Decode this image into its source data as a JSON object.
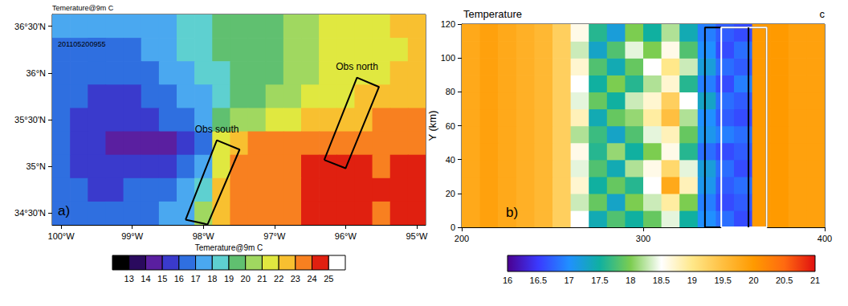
{
  "chart_data": [
    {
      "type": "heatmap",
      "title": "Temerature@9m C",
      "label": "a)",
      "annotation": "201105200955",
      "grid": false,
      "x": [
        -100,
        -99.75,
        -99.5,
        -99.25,
        -99,
        -98.75,
        -98.5,
        -98.25,
        -98,
        -97.75,
        -97.5,
        -97.25,
        -97,
        -96.75,
        -96.5,
        -96.25,
        -96,
        -95.75,
        -95.5,
        -95.25,
        -95
      ],
      "y": [
        36.5,
        36.25,
        36,
        35.75,
        35.5,
        35.25,
        35,
        34.75,
        34.5
      ],
      "cells": [
        [
          17.5,
          17.5,
          17.3,
          17.2,
          17.2,
          17.4,
          17.8,
          18.3,
          18.8,
          19.3,
          19.6,
          19.8,
          19.7,
          20.2,
          20.7,
          21.2,
          21.5,
          21.6,
          21.8,
          22.0,
          22.2
        ],
        [
          16.8,
          16.6,
          16.5,
          16.6,
          16.8,
          17.2,
          17.6,
          18.1,
          18.6,
          19.0,
          19.4,
          19.7,
          19.6,
          20.1,
          20.6,
          21.0,
          21.3,
          21.5,
          21.7,
          21.9,
          22.1
        ],
        [
          16.9,
          16.5,
          16.1,
          16.0,
          16.3,
          16.7,
          17.1,
          17.6,
          18.2,
          18.8,
          19.3,
          19.8,
          19.9,
          20.3,
          20.8,
          21.1,
          21.4,
          21.6,
          21.8,
          22.0,
          22.2
        ],
        [
          16.7,
          16.1,
          15.6,
          15.5,
          15.8,
          16.2,
          16.6,
          17.2,
          17.9,
          18.7,
          19.2,
          19.8,
          20.2,
          20.6,
          21.1,
          21.5,
          21.8,
          22.0,
          22.2,
          22.3,
          22.4
        ],
        [
          16.5,
          15.8,
          15.4,
          15.3,
          15.4,
          15.7,
          16.0,
          16.6,
          17.6,
          19.3,
          20.2,
          20.8,
          21.2,
          21.7,
          22.2,
          22.6,
          22.8,
          22.9,
          23.0,
          23.1,
          23.2
        ],
        [
          16.2,
          15.7,
          15.2,
          14.9,
          14.7,
          14.6,
          14.8,
          15.4,
          16.8,
          21.5,
          22.8,
          23.2,
          23.4,
          23.3,
          23.0,
          23.2,
          23.6,
          23.8,
          23.6,
          23.4,
          23.2
        ],
        [
          16.0,
          15.6,
          15.3,
          15.2,
          15.4,
          15.5,
          15.7,
          16.2,
          17.3,
          21.0,
          23.0,
          23.4,
          23.6,
          23.8,
          24.1,
          24.4,
          24.3,
          24.0,
          23.8,
          24.0,
          24.2
        ],
        [
          16.3,
          16.0,
          15.8,
          15.9,
          16.0,
          16.2,
          16.5,
          17.0,
          18.8,
          22.2,
          23.1,
          23.4,
          23.6,
          23.7,
          24.0,
          24.3,
          24.6,
          24.4,
          24.2,
          24.1,
          24.0
        ],
        [
          16.6,
          16.4,
          16.3,
          16.4,
          16.6,
          16.8,
          17.1,
          17.9,
          20.0,
          22.6,
          23.0,
          23.3,
          23.5,
          23.8,
          24.1,
          24.4,
          24.3,
          24.1,
          23.9,
          24.0,
          24.1
        ]
      ],
      "xlim": [
        -100.125,
        -94.875
      ],
      "ylim": [
        34.375,
        36.625
      ],
      "xticks": [
        {
          "value": -100,
          "label": "100°W"
        },
        {
          "value": -99,
          "label": "99°W"
        },
        {
          "value": -98,
          "label": "98°W"
        },
        {
          "value": -97,
          "label": "97°W"
        },
        {
          "value": -96,
          "label": "96°W"
        },
        {
          "value": -95,
          "label": "95°W"
        }
      ],
      "yticks": [
        {
          "value": 34.5,
          "label": "34°30'N"
        },
        {
          "value": 35,
          "label": "35°N"
        },
        {
          "value": 35.5,
          "label": "35°30'N"
        },
        {
          "value": 36,
          "label": "36°N"
        },
        {
          "value": 36.5,
          "label": "36°30'N"
        }
      ],
      "boxes": [
        {
          "label": "Obs south",
          "color": "#000000",
          "corners": [
            [
              -98.25,
              34.43
            ],
            [
              -97.94,
              34.38
            ],
            [
              -97.49,
              35.18
            ],
            [
              -97.81,
              35.28
            ]
          ]
        },
        {
          "label": "Obs north",
          "color": "#000000",
          "corners": [
            [
              -96.3,
              35.07
            ],
            [
              -96.0,
              34.98
            ],
            [
              -95.53,
              35.85
            ],
            [
              -95.84,
              35.95
            ]
          ]
        }
      ],
      "colorbar": {
        "title": "Temerature@9m C",
        "bounds": [
          12,
          13,
          14,
          15,
          16,
          17,
          18,
          19,
          20,
          21,
          22,
          23,
          24,
          25,
          26
        ],
        "colors": [
          "#000000",
          "#2a0a5e",
          "#5a1fa0",
          "#3a3acc",
          "#2f6fe0",
          "#4aa8f0",
          "#5ed0d0",
          "#60c070",
          "#a0d860",
          "#e0e840",
          "#f8c030",
          "#f88020",
          "#e02010",
          "#ffffff"
        ],
        "ticks": [
          13,
          14,
          15,
          16,
          17,
          18,
          19,
          20,
          21,
          22,
          23,
          24,
          25
        ]
      }
    },
    {
      "type": "heatmap",
      "title": "Temperature",
      "corner_label": "c",
      "label": "b)",
      "ylabel": "Y (km)",
      "grid": false,
      "x": [
        205,
        215,
        225,
        235,
        245,
        255,
        265,
        275,
        285,
        295,
        305,
        315,
        325,
        335,
        345,
        355,
        365,
        375,
        385,
        395
      ],
      "y": [
        5,
        15,
        25,
        35,
        45,
        55,
        65,
        75,
        85,
        95,
        105,
        115
      ],
      "cells": [
        [
          19.8,
          19.9,
          19.8,
          19.7,
          19.6,
          19.3,
          18.5,
          17.4,
          17.8,
          17.5,
          17.9,
          18.4,
          17.5,
          17.0,
          16.8,
          16.6,
          20.0,
          20.0,
          19.9,
          19.9
        ],
        [
          19.8,
          19.9,
          19.8,
          19.7,
          19.6,
          19.3,
          18.3,
          17.9,
          17.3,
          18.0,
          18.3,
          18.9,
          18.0,
          16.9,
          16.6,
          16.7,
          20.0,
          20.0,
          19.9,
          19.9
        ],
        [
          19.8,
          19.9,
          19.8,
          19.7,
          19.6,
          19.3,
          18.7,
          17.5,
          17.9,
          17.6,
          18.5,
          19.8,
          18.8,
          17.1,
          16.7,
          16.8,
          20.0,
          20.0,
          19.9,
          19.9
        ],
        [
          19.8,
          19.9,
          19.8,
          19.7,
          19.6,
          19.3,
          18.4,
          17.8,
          17.4,
          18.2,
          18.6,
          19.2,
          18.4,
          17.2,
          16.8,
          16.6,
          20.0,
          20.0,
          19.9,
          19.9
        ],
        [
          19.8,
          19.9,
          19.8,
          19.7,
          19.6,
          19.3,
          18.6,
          17.6,
          18.1,
          17.5,
          18.0,
          18.6,
          17.6,
          16.8,
          16.6,
          16.7,
          20.0,
          20.0,
          19.9,
          19.9
        ],
        [
          19.8,
          19.9,
          19.8,
          19.7,
          19.6,
          19.3,
          18.2,
          17.7,
          17.3,
          17.8,
          18.4,
          18.8,
          17.9,
          17.1,
          16.9,
          16.8,
          20.0,
          20.0,
          19.9,
          19.9
        ],
        [
          19.8,
          19.9,
          19.8,
          19.7,
          19.6,
          19.3,
          18.8,
          17.4,
          17.9,
          18.1,
          18.9,
          19.5,
          18.2,
          17.0,
          16.7,
          16.6,
          20.0,
          20.0,
          19.9,
          19.9
        ],
        [
          19.8,
          19.9,
          19.8,
          19.7,
          19.6,
          19.3,
          18.4,
          17.9,
          17.5,
          18.3,
          18.7,
          19.3,
          18.5,
          17.3,
          16.8,
          16.7,
          20.0,
          20.0,
          19.9,
          19.9
        ],
        [
          19.8,
          19.9,
          19.8,
          19.7,
          19.6,
          19.3,
          18.5,
          17.5,
          18.0,
          17.6,
          18.2,
          18.7,
          17.6,
          16.9,
          16.6,
          16.9,
          20.0,
          20.0,
          19.9,
          19.9
        ],
        [
          19.8,
          19.9,
          19.8,
          19.7,
          19.6,
          19.3,
          18.7,
          17.8,
          17.4,
          17.9,
          18.5,
          19.0,
          18.3,
          17.2,
          16.8,
          16.7,
          20.0,
          20.0,
          19.9,
          19.9
        ],
        [
          19.8,
          19.9,
          19.8,
          19.7,
          19.6,
          19.3,
          18.3,
          17.3,
          17.8,
          18.4,
          18.0,
          18.6,
          17.8,
          17.0,
          16.6,
          16.8,
          20.0,
          20.0,
          19.9,
          19.9
        ],
        [
          19.8,
          19.9,
          19.8,
          19.7,
          19.6,
          19.3,
          18.6,
          17.6,
          17.2,
          18.0,
          17.5,
          18.2,
          17.4,
          16.9,
          16.7,
          16.6,
          20.0,
          20.0,
          19.9,
          19.9
        ]
      ],
      "xlim": [
        200,
        400
      ],
      "ylim": [
        0,
        120
      ],
      "xticks": [
        200,
        300,
        400
      ],
      "yticks": [
        0,
        20,
        40,
        60,
        80,
        100,
        120
      ],
      "boxes": [
        {
          "color": "#000000",
          "corners": [
            [
              334,
              0
            ],
            [
              368,
              0
            ],
            [
              368,
              118
            ],
            [
              334,
              118
            ]
          ]
        },
        {
          "color": "#ffffff",
          "corners": [
            [
              343,
              0
            ],
            [
              368,
              0
            ],
            [
              368,
              118
            ],
            [
              343,
              118
            ]
          ]
        }
      ],
      "lines": [
        {
          "color": "#000000",
          "x": [
            358,
            358
          ],
          "y": [
            0,
            118
          ]
        }
      ],
      "colorbar": {
        "range": [
          16,
          21
        ],
        "colors": [
          "#4b0090",
          "#3a3aff",
          "#2090ff",
          "#10b0a0",
          "#7ccd50",
          "#ffffff",
          "#ffe88a",
          "#ffbf40",
          "#ff9a00",
          "#ff6a10",
          "#e01010"
        ],
        "ticks": [
          16,
          16.5,
          17,
          17.5,
          18,
          18.5,
          19,
          19.5,
          20,
          20.5,
          21
        ]
      }
    }
  ]
}
